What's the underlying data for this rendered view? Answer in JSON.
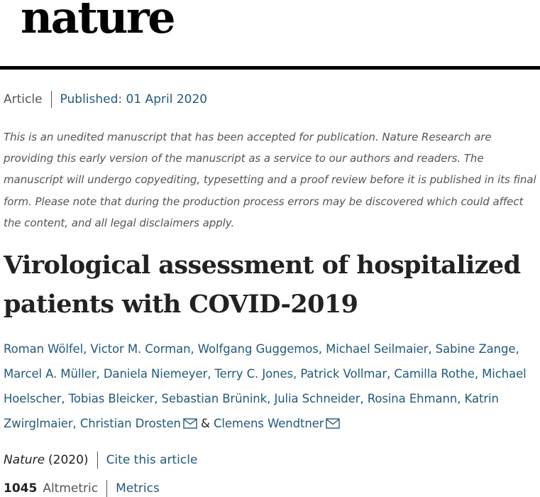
{
  "masthead": {
    "logo_text": "nature"
  },
  "article_meta": {
    "type": "Article",
    "published": "Published: 01 April 2020"
  },
  "notice": "This is an unedited manuscript that has been accepted for publication. Nature Research are providing this early version of the manuscript as a service to our authors and readers. The manuscript will undergo copyediting, typesetting and a proof review before it is published in its final form. Please note that during the production process errors may be discovered which could affect the content, and all legal disclaimers apply.",
  "title": "Virological assessment of hospitalized patients with COVID-2019",
  "authors": [
    "Roman Wölfel",
    "Victor M. Corman",
    "Wolfgang Guggemos",
    "Michael Seilmaier",
    "Sabine Zange",
    "Marcel A. Müller",
    "Daniela Niemeyer",
    "Terry C. Jones",
    "Patrick Vollmar",
    "Camilla Rothe",
    "Michael Hoelscher",
    "Tobias Bleicker",
    "Sebastian Brünink",
    "Julia Schneider",
    "Rosina Ehmann",
    "Katrin Zwirglmaier",
    "Christian Drosten",
    "Clemens Wendtner"
  ],
  "author_separator": ",",
  "author_ampersand": "&",
  "citation": {
    "journal": "Nature",
    "year": "(2020)",
    "cite_label": "Cite this article"
  },
  "metrics": {
    "altmetric_score": "1045",
    "altmetric_label": "Altmetric",
    "metrics_label": "Metrics"
  },
  "colors": {
    "link": "#225a7a",
    "text": "#222222",
    "muted": "#555555"
  },
  "icons": {
    "corresponding_author": "mail-icon"
  }
}
